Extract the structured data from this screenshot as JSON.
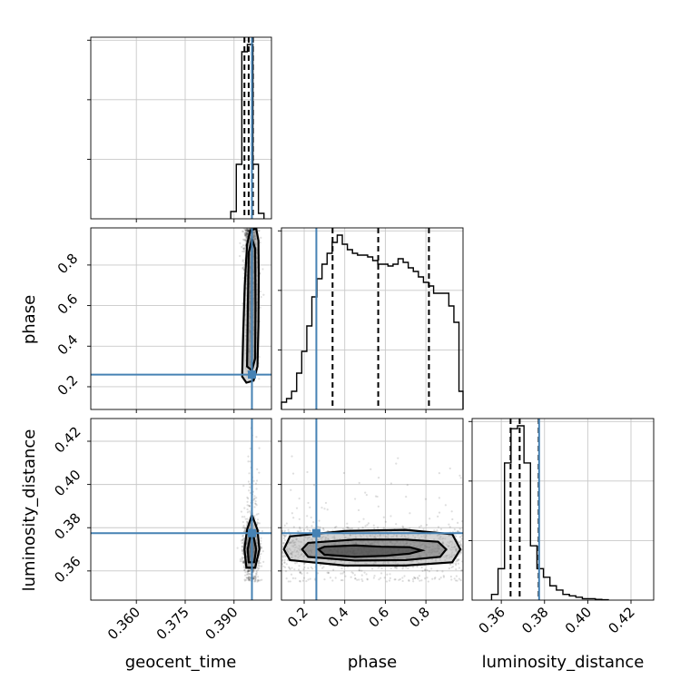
{
  "chart_data": {
    "type": "corner",
    "parameters": [
      "geocent_time",
      "phase",
      "luminosity_distance"
    ],
    "truths": {
      "geocent_time": 0.3955,
      "phase": 0.26,
      "luminosity_distance": 0.3775
    },
    "truth_color": "#4682b4",
    "ranges": {
      "geocent_time": [
        0.346,
        0.4015
      ],
      "phase": [
        0.088,
        0.983
      ],
      "luminosity_distance": [
        0.3465,
        0.4305
      ]
    },
    "ticks": {
      "geocent_time": [
        0.36,
        0.375,
        0.39
      ],
      "phase": [
        0.2,
        0.4,
        0.6,
        0.8
      ],
      "luminosity_distance": [
        0.36,
        0.38,
        0.4,
        0.42
      ]
    },
    "tick_labels": {
      "geocent_time": [
        "0.360",
        "0.375",
        "0.390"
      ],
      "phase": [
        "0.2",
        "0.4",
        "0.6",
        "0.8"
      ],
      "luminosity_distance": [
        "0.36",
        "0.38",
        "0.40",
        "0.42"
      ]
    },
    "quantiles": {
      "geocent_time": [
        0.3932,
        0.3945,
        0.3958
      ],
      "phase": [
        0.34,
        0.565,
        0.815
      ],
      "luminosity_distance": [
        0.3643,
        0.3685,
        0.3773
      ]
    },
    "marginals": {
      "geocent_time": {
        "edges": [
          0.389,
          0.3907,
          0.3924,
          0.3941,
          0.3958,
          0.3975,
          0.3992
        ],
        "counts": [
          4,
          30,
          92,
          96,
          30,
          3
        ]
      },
      "phase": {
        "edges": [
          0.088,
          0.113,
          0.138,
          0.163,
          0.188,
          0.213,
          0.238,
          0.263,
          0.288,
          0.313,
          0.338,
          0.363,
          0.388,
          0.413,
          0.438,
          0.463,
          0.488,
          0.513,
          0.538,
          0.563,
          0.588,
          0.613,
          0.638,
          0.663,
          0.688,
          0.713,
          0.738,
          0.763,
          0.788,
          0.813,
          0.838,
          0.863,
          0.888,
          0.913,
          0.938,
          0.963,
          0.983
        ],
        "counts": [
          4,
          6,
          10,
          20,
          32,
          46,
          62,
          72,
          80,
          86,
          92,
          96,
          91,
          88,
          86,
          85,
          85,
          84,
          82,
          80,
          80,
          79,
          80,
          83,
          81,
          78,
          76,
          73,
          70,
          68,
          64,
          64,
          64,
          57,
          48,
          10
        ]
      },
      "luminosity_distance": {
        "edges": [
          0.3555,
          0.3585,
          0.3615,
          0.3645,
          0.3675,
          0.3705,
          0.3735,
          0.3765,
          0.3795,
          0.3825,
          0.3855,
          0.3885,
          0.3915,
          0.3945,
          0.3975,
          0.4005,
          0.4035,
          0.4065,
          0.4095
        ],
        "counts": [
          4,
          22,
          96,
          120,
          122,
          96,
          38,
          22,
          16,
          10,
          7,
          4,
          3,
          2,
          1,
          1,
          0.5,
          0.3
        ]
      }
    },
    "joint": [
      {
        "x": "geocent_time",
        "y": "phase",
        "x_center": 0.3953,
        "x_spread": 0.0011,
        "y_range": [
          0.18,
          0.98
        ],
        "contours": [
          [
            [
              0.3925,
              0.25
            ],
            [
              0.3938,
              0.22
            ],
            [
              0.396,
              0.23
            ],
            [
              0.3972,
              0.3
            ],
            [
              0.3975,
              0.5
            ],
            [
              0.3976,
              0.75
            ],
            [
              0.3975,
              0.92
            ],
            [
              0.3968,
              0.98
            ],
            [
              0.395,
              0.97
            ],
            [
              0.394,
              0.9
            ],
            [
              0.3933,
              0.7
            ],
            [
              0.3928,
              0.45
            ],
            [
              0.3925,
              0.25
            ]
          ],
          [
            [
              0.394,
              0.3
            ],
            [
              0.3955,
              0.28
            ],
            [
              0.3965,
              0.34
            ],
            [
              0.3966,
              0.6
            ],
            [
              0.3965,
              0.88
            ],
            [
              0.3955,
              0.93
            ],
            [
              0.3945,
              0.86
            ],
            [
              0.3942,
              0.55
            ],
            [
              0.394,
              0.3
            ]
          ]
        ]
      },
      {
        "x": "geocent_time",
        "y": "luminosity_distance",
        "x_center": 0.3953,
        "x_spread": 0.0012,
        "y_center": 0.37,
        "y_spread": 0.005,
        "contours": [
          [
            [
              0.3938,
              0.3615
            ],
            [
              0.3965,
              0.3615
            ],
            [
              0.3978,
              0.37
            ],
            [
              0.3972,
              0.379
            ],
            [
              0.3955,
              0.386
            ],
            [
              0.394,
              0.379
            ],
            [
              0.3932,
              0.37
            ],
            [
              0.3938,
              0.3615
            ]
          ],
          [
            [
              0.3945,
              0.364
            ],
            [
              0.3962,
              0.364
            ],
            [
              0.3968,
              0.37
            ],
            [
              0.396,
              0.376
            ],
            [
              0.395,
              0.376
            ],
            [
              0.3942,
              0.37
            ],
            [
              0.3945,
              0.364
            ]
          ]
        ]
      },
      {
        "x": "phase",
        "y": "luminosity_distance",
        "x_range": [
          0.09,
          0.98
        ],
        "y_center": 0.37,
        "y_spread": 0.005,
        "contours": [
          [
            [
              0.13,
              0.365
            ],
            [
              0.4,
              0.3625
            ],
            [
              0.7,
              0.3625
            ],
            [
              0.93,
              0.364
            ],
            [
              0.97,
              0.37
            ],
            [
              0.93,
              0.377
            ],
            [
              0.7,
              0.379
            ],
            [
              0.4,
              0.3785
            ],
            [
              0.13,
              0.376
            ],
            [
              0.1,
              0.37
            ],
            [
              0.13,
              0.365
            ]
          ],
          [
            [
              0.22,
              0.3665
            ],
            [
              0.45,
              0.3648
            ],
            [
              0.7,
              0.365
            ],
            [
              0.87,
              0.3665
            ],
            [
              0.9,
              0.37
            ],
            [
              0.86,
              0.3735
            ],
            [
              0.7,
              0.3745
            ],
            [
              0.45,
              0.3745
            ],
            [
              0.22,
              0.373
            ],
            [
              0.19,
              0.37
            ],
            [
              0.22,
              0.3665
            ]
          ],
          [
            [
              0.3,
              0.3675
            ],
            [
              0.45,
              0.3665
            ],
            [
              0.6,
              0.367
            ],
            [
              0.72,
              0.368
            ],
            [
              0.78,
              0.3695
            ],
            [
              0.72,
              0.371
            ],
            [
              0.58,
              0.3712
            ],
            [
              0.45,
              0.3718
            ],
            [
              0.3,
              0.3712
            ],
            [
              0.27,
              0.37
            ],
            [
              0.3,
              0.3675
            ]
          ]
        ]
      }
    ]
  }
}
